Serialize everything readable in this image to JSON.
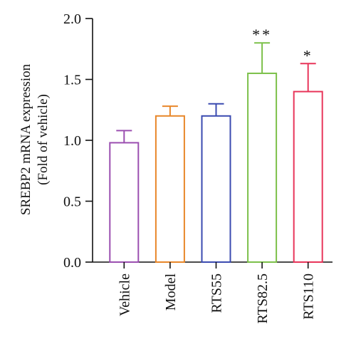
{
  "chart_data": {
    "type": "bar",
    "ylabel_line1": "SREBP2 mRNA expression",
    "ylabel_line2": "(Fold of vehicle)",
    "xlabel": "",
    "ylim": [
      0,
      2.0
    ],
    "yticks": [
      0.0,
      0.5,
      1.0,
      1.5,
      2.0
    ],
    "ytick_labels": [
      "0.0",
      "0.5",
      "1.0",
      "1.5",
      "2.0"
    ],
    "grid": false,
    "legend": false,
    "categories": [
      "Vehicle",
      "Model",
      "RTS55",
      "RTS82.5",
      "RTS110"
    ],
    "values": [
      0.98,
      1.2,
      1.2,
      1.55,
      1.4
    ],
    "error": [
      0.1,
      0.08,
      0.1,
      0.25,
      0.23
    ],
    "significance": [
      "",
      "",
      "",
      "**",
      "*"
    ],
    "colors": [
      "#9b4fb0",
      "#e8872a",
      "#3b4bb0",
      "#7cc04a",
      "#e8355a"
    ]
  }
}
